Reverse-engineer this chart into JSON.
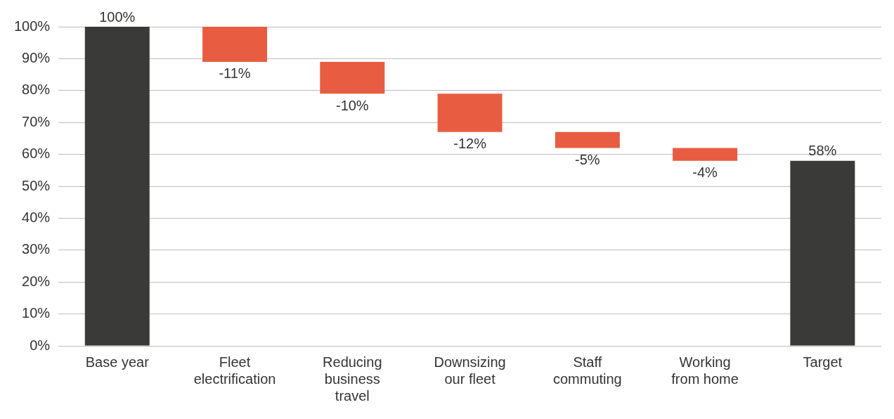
{
  "chart_data": {
    "type": "bar",
    "categories": [
      "Base year",
      "Fleet electrification",
      "Reducing business travel",
      "Downsizing our fleet",
      "Staff commuting",
      "Working from home",
      "Target"
    ],
    "values": [
      100,
      -11,
      -10,
      -12,
      -5,
      -4,
      58
    ],
    "base": [
      0,
      100,
      89,
      79,
      67,
      62,
      0
    ],
    "colors": [
      "#3a3a38",
      "#e85d42",
      "#e85d42",
      "#e85d42",
      "#e85d42",
      "#e85d42",
      "#3a3a38"
    ],
    "value_labels": [
      "100%",
      "-11%",
      "-10%",
      "-12%",
      "-5%",
      "-4%",
      "58%"
    ],
    "ylim": [
      0,
      100
    ],
    "yticks": [
      {
        "value": 0,
        "label": "0%"
      },
      {
        "value": 10,
        "label": "10%"
      },
      {
        "value": 20,
        "label": "20%"
      },
      {
        "value": 30,
        "label": "30%"
      },
      {
        "value": 40,
        "label": "40%"
      },
      {
        "value": 50,
        "label": "50%"
      },
      {
        "value": 60,
        "label": "60%"
      },
      {
        "value": 70,
        "label": "70%"
      },
      {
        "value": 80,
        "label": "80%"
      },
      {
        "value": 90,
        "label": "90%"
      },
      {
        "value": 100,
        "label": "100%"
      }
    ],
    "grid": "y",
    "legend": false
  }
}
